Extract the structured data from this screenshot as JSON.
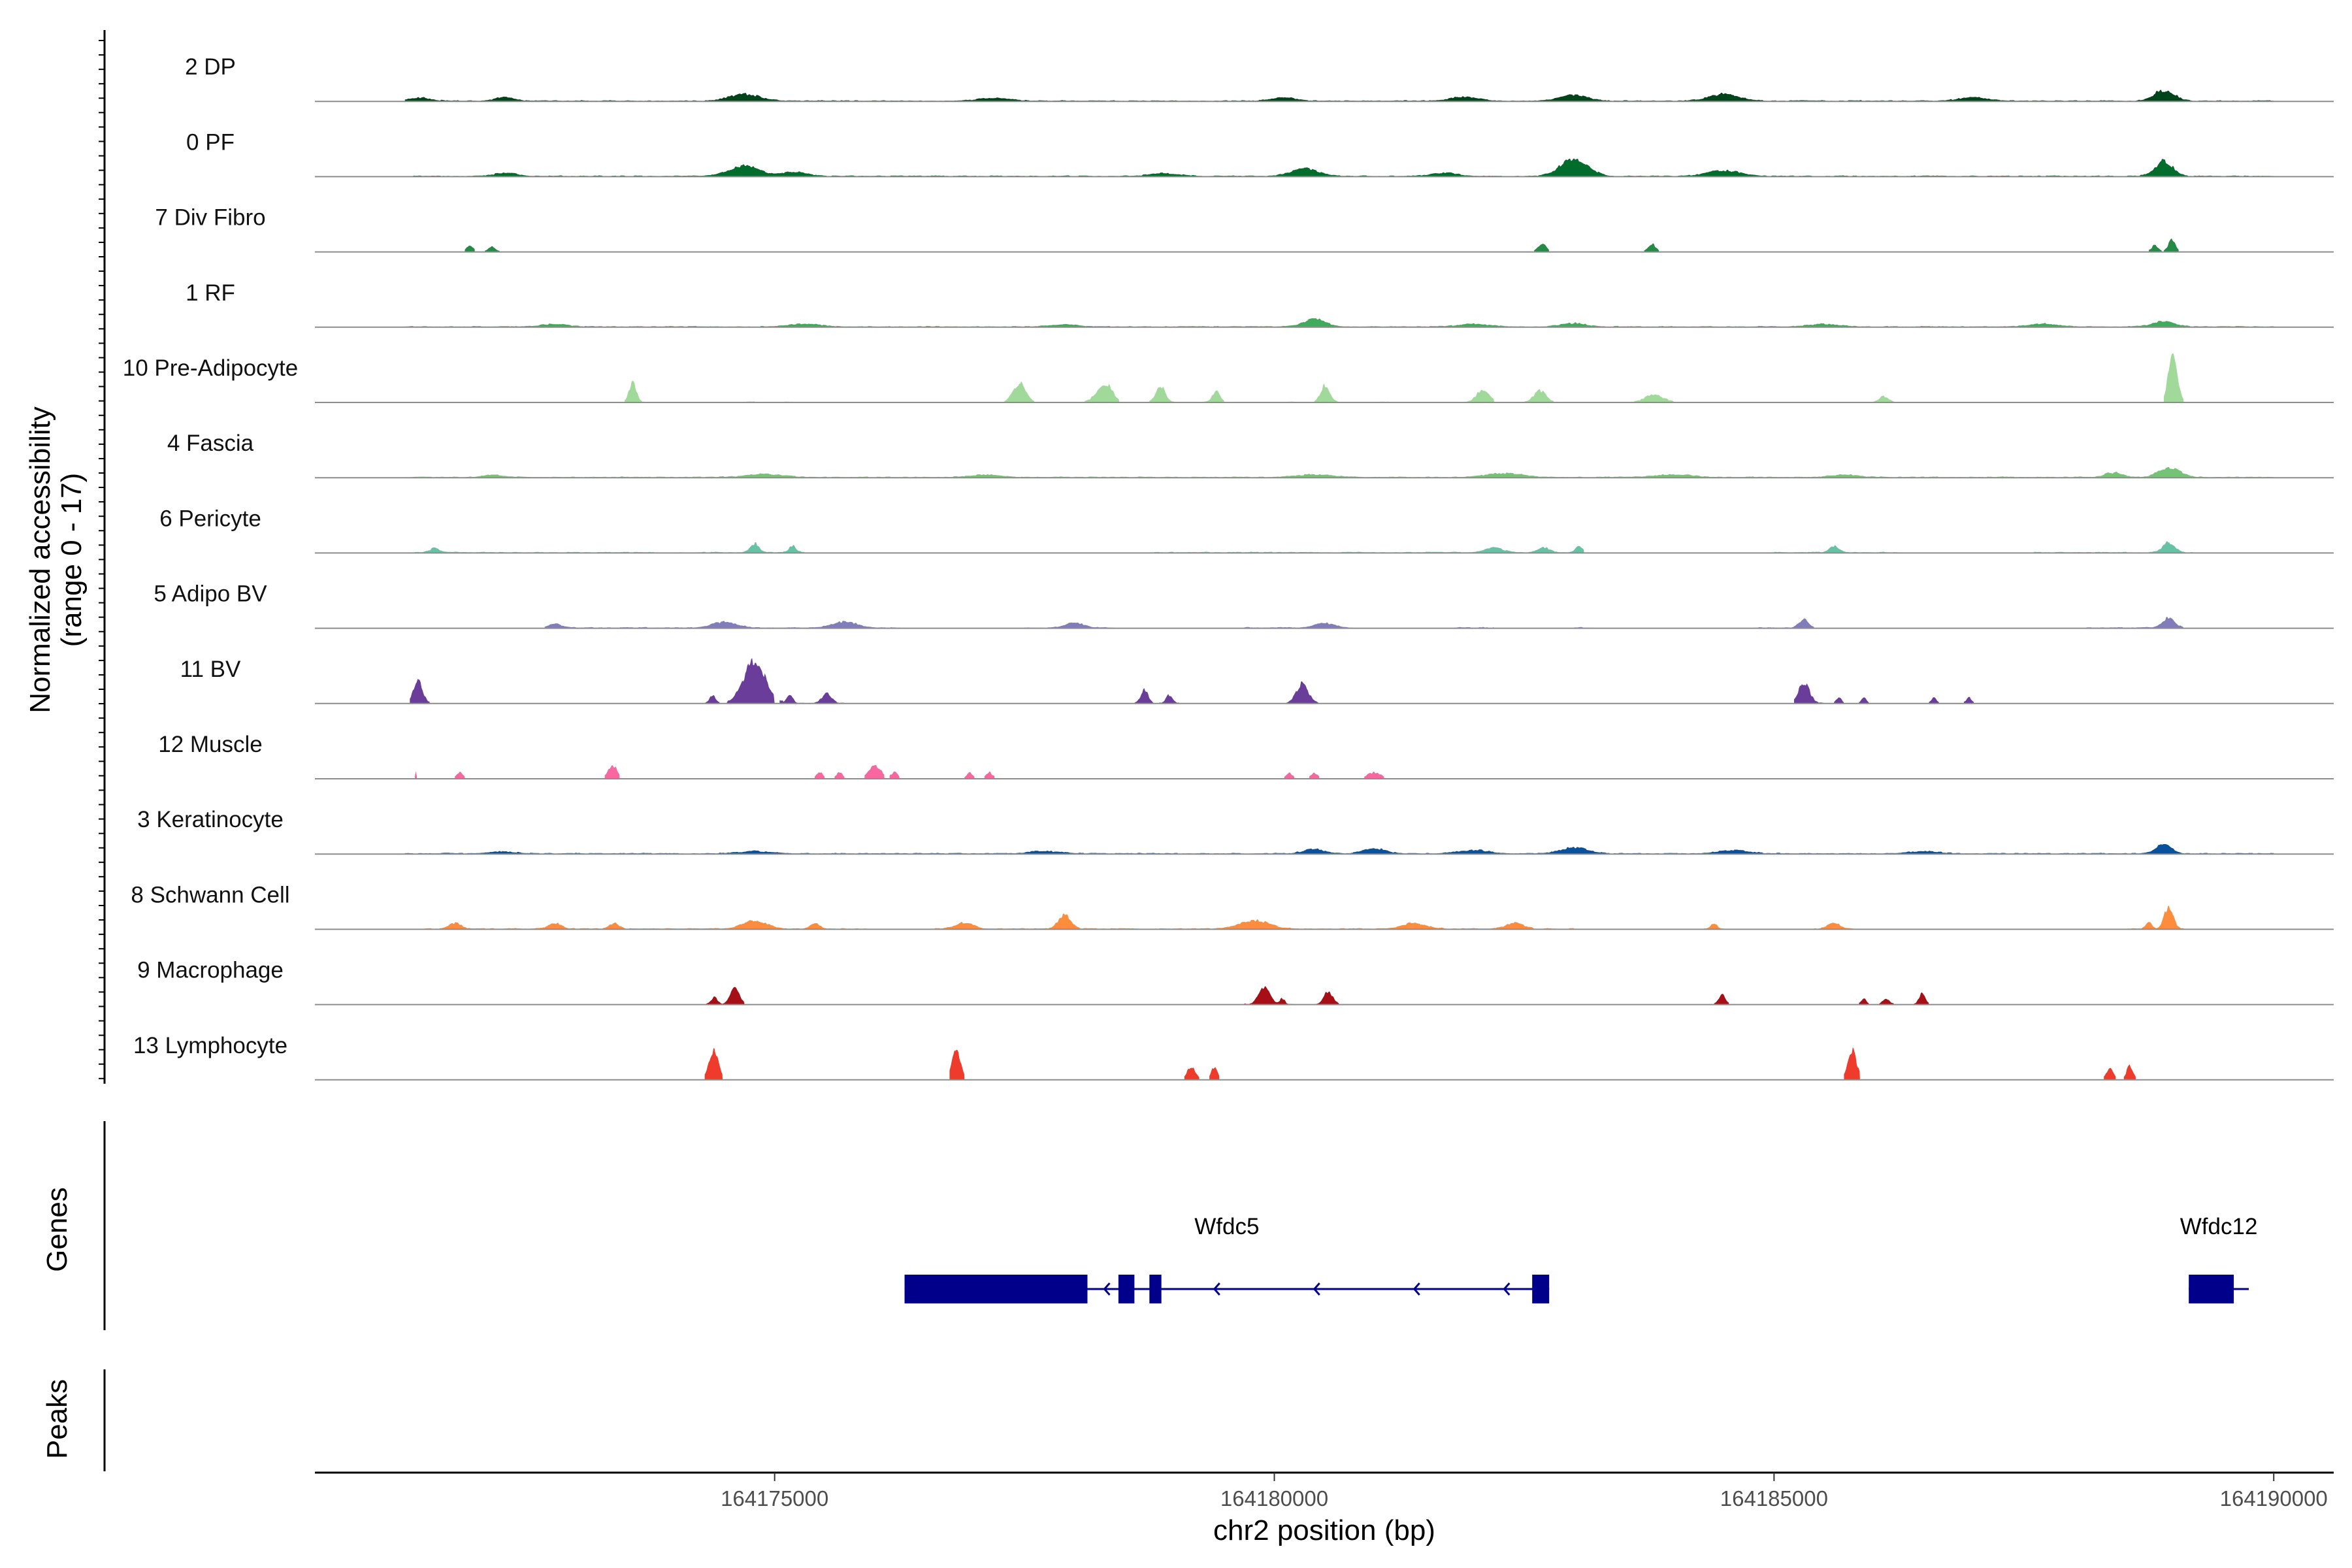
{
  "chart_data": {
    "type": "area",
    "title": "",
    "xlabel": "chr2 position (bp)",
    "ylabel": "Normalized accessibility",
    "ylabel_sub": "(range 0 - 17)",
    "xlim": [
      164170400,
      164190600
    ],
    "x_ticks": [
      164175000,
      164180000,
      164185000,
      164190000
    ],
    "x_tick_labels": [
      "164175000",
      "164180000",
      "164185000",
      "164190000"
    ],
    "ylim": [
      0,
      17
    ],
    "tracks": [
      {
        "name": "2 DP",
        "color": "#00441b",
        "regions": [
          [
            164171300,
            164190000
          ]
        ],
        "peaks": [
          [
            164171450,
            0.9,
            350
          ],
          [
            164172300,
            1.0,
            280
          ],
          [
            164174700,
            1.8,
            500
          ],
          [
            164177200,
            0.8,
            500
          ],
          [
            164180100,
            0.9,
            400
          ],
          [
            164181900,
            1.1,
            450
          ],
          [
            164183000,
            1.6,
            450
          ],
          [
            164184500,
            1.8,
            500
          ],
          [
            164187000,
            0.9,
            500
          ],
          [
            164188900,
            2.8,
            350
          ]
        ]
      },
      {
        "name": "0 PF",
        "color": "#006d2c",
        "regions": [
          [
            164171300,
            164190000
          ]
        ],
        "peaks": [
          [
            164172300,
            0.8,
            400
          ],
          [
            164174700,
            2.8,
            500
          ],
          [
            164175200,
            1.2,
            400
          ],
          [
            164178900,
            0.7,
            500
          ],
          [
            164180300,
            2.0,
            450
          ],
          [
            164181700,
            0.9,
            400
          ],
          [
            164183000,
            4.8,
            450
          ],
          [
            164184500,
            1.5,
            550
          ],
          [
            164188900,
            4.0,
            300
          ]
        ]
      },
      {
        "name": "7 Div Fibro",
        "color": "#238b45",
        "regions": [
          [
            164171900,
            164172000
          ],
          [
            164172100,
            164172250
          ],
          [
            164182600,
            164182750
          ],
          [
            164183700,
            164183850
          ],
          [
            164188750,
            164188880
          ],
          [
            164188900,
            164189050
          ]
        ],
        "peaks": [
          [
            164171950,
            1.8,
            100
          ],
          [
            164172170,
            1.3,
            100
          ],
          [
            164182680,
            2.2,
            120
          ],
          [
            164183780,
            2.0,
            120
          ],
          [
            164188810,
            1.6,
            100
          ],
          [
            164188980,
            3.0,
            120
          ]
        ]
      },
      {
        "name": "1 RF",
        "color": "#41ab5d",
        "regions": [
          [
            164171300,
            164190000
          ]
        ],
        "peaks": [
          [
            164172800,
            0.6,
            500
          ],
          [
            164175300,
            0.7,
            500
          ],
          [
            164177900,
            0.6,
            500
          ],
          [
            164180400,
            2.0,
            350
          ],
          [
            164182000,
            0.7,
            500
          ],
          [
            164183000,
            0.9,
            400
          ],
          [
            164185500,
            0.7,
            500
          ],
          [
            164187700,
            0.7,
            500
          ],
          [
            164188900,
            1.5,
            350
          ]
        ]
      },
      {
        "name": "10 Pre-Adipocyte",
        "color": "#a1d99b",
        "regions": [
          [
            164173500,
            164173700
          ],
          [
            164174700,
            164174800
          ],
          [
            164175100,
            164175200
          ],
          [
            164177300,
            164177600
          ],
          [
            164178100,
            164178450
          ],
          [
            164178750,
            164179000
          ],
          [
            164179300,
            164179500
          ],
          [
            164180100,
            164180200
          ],
          [
            164180400,
            164180650
          ],
          [
            164181050,
            164181150
          ],
          [
            164181900,
            164182200
          ],
          [
            164182500,
            164182800
          ],
          [
            164183600,
            164184000
          ],
          [
            164186000,
            164186200
          ],
          [
            164188900,
            164189100
          ]
        ],
        "peaks": [
          [
            164173580,
            5.0,
            120
          ],
          [
            164177450,
            5.0,
            200
          ],
          [
            164178300,
            5.0,
            250
          ],
          [
            164178860,
            4.2,
            150
          ],
          [
            164179420,
            3.0,
            120
          ],
          [
            164180510,
            4.5,
            150
          ],
          [
            164182090,
            3.5,
            200
          ],
          [
            164182660,
            3.0,
            200
          ],
          [
            164183800,
            1.8,
            300
          ],
          [
            164186100,
            1.5,
            150
          ],
          [
            164188990,
            13.0,
            150
          ]
        ]
      },
      {
        "name": "4 Fascia",
        "color": "#74c476",
        "regions": [
          [
            164171300,
            164190000
          ]
        ],
        "peaks": [
          [
            164172200,
            0.5,
            400
          ],
          [
            164174900,
            0.8,
            600
          ],
          [
            164177100,
            0.6,
            500
          ],
          [
            164180400,
            0.7,
            600
          ],
          [
            164182300,
            1.0,
            600
          ],
          [
            164184000,
            0.7,
            600
          ],
          [
            164185700,
            0.6,
            500
          ],
          [
            164188400,
            1.2,
            300
          ],
          [
            164188950,
            2.6,
            350
          ]
        ]
      },
      {
        "name": "6 Pericyte",
        "color": "#66c2a4",
        "regions": [
          [
            164171400,
            164173800
          ],
          [
            164174000,
            164175300
          ],
          [
            164178800,
            164183100
          ],
          [
            164185000,
            164186300
          ],
          [
            164187600,
            164189200
          ]
        ],
        "peaks": [
          [
            164171600,
            1.2,
            150
          ],
          [
            164174800,
            2.4,
            150
          ],
          [
            164175180,
            1.8,
            120
          ],
          [
            164182200,
            1.2,
            300
          ],
          [
            164182700,
            1.3,
            200
          ],
          [
            164183050,
            1.6,
            120
          ],
          [
            164185600,
            1.8,
            150
          ],
          [
            164188950,
            2.8,
            200
          ]
        ]
      },
      {
        "name": "5 Adipo BV",
        "color": "#807dba",
        "regions": [
          [
            164172700,
            164176300
          ],
          [
            164177500,
            164178400
          ],
          [
            164179700,
            164180800
          ],
          [
            164181800,
            164182200
          ],
          [
            164183000,
            164183200
          ],
          [
            164184800,
            164185400
          ],
          [
            164188100,
            164189100
          ]
        ],
        "peaks": [
          [
            164172800,
            1.1,
            200
          ],
          [
            164174500,
            1.5,
            400
          ],
          [
            164175700,
            1.6,
            400
          ],
          [
            164178000,
            1.4,
            300
          ],
          [
            164180500,
            1.3,
            300
          ],
          [
            164185300,
            2.4,
            150
          ],
          [
            164188950,
            2.6,
            200
          ]
        ]
      },
      {
        "name": "11 BV",
        "color": "#6a3d9a",
        "regions": [
          [
            164171350,
            164171550
          ],
          [
            164174300,
            164174450
          ],
          [
            164174500,
            164175000
          ],
          [
            164175050,
            164175300
          ],
          [
            164175350,
            164175700
          ],
          [
            164178600,
            164178800
          ],
          [
            164178850,
            164179050
          ],
          [
            164180100,
            164180450
          ],
          [
            164185200,
            164185500
          ],
          [
            164185600,
            164185700
          ],
          [
            164185850,
            164185950
          ],
          [
            164186550,
            164186650
          ],
          [
            164186900,
            164187000
          ]
        ],
        "peaks": [
          [
            164171430,
            6.0,
            150
          ],
          [
            164174380,
            2.0,
            100
          ],
          [
            164174800,
            12.0,
            350
          ],
          [
            164175150,
            2.2,
            100
          ],
          [
            164175520,
            2.5,
            150
          ],
          [
            164178700,
            3.5,
            120
          ],
          [
            164178950,
            2.2,
            100
          ],
          [
            164180280,
            5.0,
            200
          ],
          [
            164185300,
            5.5,
            180
          ],
          [
            164185650,
            1.5,
            80
          ],
          [
            164185900,
            1.4,
            80
          ],
          [
            164186600,
            1.5,
            80
          ],
          [
            164186950,
            1.4,
            80
          ]
        ]
      },
      {
        "name": "12 Muscle",
        "color": "#f768a1",
        "regions": [
          [
            164171400,
            164171420
          ],
          [
            164171800,
            164171900
          ],
          [
            164173300,
            164173450
          ],
          [
            164175400,
            164175500
          ],
          [
            164175600,
            164175700
          ],
          [
            164175900,
            164176100
          ],
          [
            164176150,
            164176250
          ],
          [
            164176900,
            164177000
          ],
          [
            164177100,
            164177200
          ],
          [
            164180100,
            164180200
          ],
          [
            164180350,
            164180450
          ],
          [
            164180900,
            164181100
          ]
        ],
        "peaks": [
          [
            164171410,
            2.0,
            20
          ],
          [
            164171850,
            1.6,
            100
          ],
          [
            164173380,
            3.5,
            150
          ],
          [
            164175450,
            1.6,
            100
          ],
          [
            164175650,
            1.6,
            100
          ],
          [
            164176000,
            3.5,
            200
          ],
          [
            164176200,
            1.6,
            100
          ],
          [
            164176950,
            1.5,
            100
          ],
          [
            164177150,
            1.5,
            100
          ],
          [
            164180150,
            1.5,
            100
          ],
          [
            164180400,
            1.5,
            100
          ],
          [
            164181000,
            1.6,
            200
          ]
        ]
      },
      {
        "name": "3 Keratinocyte",
        "color": "#08519c",
        "regions": [
          [
            164171300,
            164190000
          ]
        ],
        "peaks": [
          [
            164172300,
            0.5,
            400
          ],
          [
            164174800,
            0.6,
            500
          ],
          [
            164177700,
            0.6,
            500
          ],
          [
            164180400,
            1.2,
            350
          ],
          [
            164181000,
            1.4,
            350
          ],
          [
            164182000,
            0.9,
            500
          ],
          [
            164183000,
            1.6,
            450
          ],
          [
            164184600,
            0.9,
            500
          ],
          [
            164186500,
            0.6,
            500
          ],
          [
            164188900,
            2.5,
            250
          ]
        ]
      },
      {
        "name": "8 Schwann Cell",
        "color": "#fd8d3c",
        "regions": [
          [
            164171500,
            164176000
          ],
          [
            164176600,
            164182600
          ],
          [
            164182700,
            164183000
          ],
          [
            164184300,
            164184500
          ],
          [
            164185400,
            164185800
          ],
          [
            164188500,
            164189100
          ]
        ],
        "peaks": [
          [
            164171800,
            1.6,
            200
          ],
          [
            164172800,
            1.5,
            200
          ],
          [
            164173400,
            1.5,
            150
          ],
          [
            164174800,
            2.2,
            400
          ],
          [
            164175400,
            1.5,
            150
          ],
          [
            164176900,
            1.6,
            300
          ],
          [
            164177900,
            3.8,
            200
          ],
          [
            164179800,
            2.2,
            500
          ],
          [
            164181400,
            1.5,
            400
          ],
          [
            164182400,
            1.5,
            300
          ],
          [
            164184400,
            1.5,
            100
          ],
          [
            164185600,
            1.5,
            200
          ],
          [
            164188750,
            2.0,
            100
          ],
          [
            164188950,
            6.0,
            150
          ]
        ]
      },
      {
        "name": "9 Macrophage",
        "color": "#a50f15",
        "regions": [
          [
            164174300,
            164174700
          ],
          [
            164179700,
            164180200
          ],
          [
            164180400,
            164180650
          ],
          [
            164184400,
            164184550
          ],
          [
            164185850,
            164185950
          ],
          [
            164186050,
            164186200
          ],
          [
            164186400,
            164186550
          ]
        ],
        "peaks": [
          [
            164174400,
            1.8,
            100
          ],
          [
            164174600,
            4.5,
            150
          ],
          [
            164179900,
            4.5,
            180
          ],
          [
            164180080,
            1.5,
            80
          ],
          [
            164180540,
            3.2,
            150
          ],
          [
            164184480,
            2.5,
            100
          ],
          [
            164185900,
            1.4,
            80
          ],
          [
            164186120,
            1.5,
            100
          ],
          [
            164186480,
            2.8,
            100
          ]
        ]
      },
      {
        "name": "13 Lymphocyte",
        "color": "#ef3b2c",
        "regions": [
          [
            164174300,
            164174480
          ],
          [
            164176750,
            164176900
          ],
          [
            164179100,
            164179250
          ],
          [
            164179350,
            164179450
          ],
          [
            164185700,
            164185860
          ],
          [
            164188300,
            164188420
          ],
          [
            164188500,
            164188620
          ]
        ],
        "peaks": [
          [
            164174390,
            8.0,
            160
          ],
          [
            164176820,
            8.0,
            140
          ],
          [
            164179170,
            3.5,
            140
          ],
          [
            164179400,
            3.5,
            100
          ],
          [
            164185780,
            7.8,
            150
          ],
          [
            164188360,
            3.2,
            110
          ],
          [
            164188560,
            3.5,
            110
          ]
        ]
      }
    ],
    "genes": [
      {
        "name": "Wfdc5",
        "strand": "-",
        "start": 164176300,
        "end": 164182750,
        "exons": [
          [
            164176300,
            164178130
          ],
          [
            164178440,
            164178600
          ],
          [
            164178750,
            164178870
          ],
          [
            164182580,
            164182750
          ]
        ],
        "arrows": [
          164178300,
          164179400,
          164180400,
          164181400,
          164182300
        ]
      },
      {
        "name": "Wfdc12",
        "strand": "-",
        "start": 164189150,
        "end": 164189750,
        "exons": [
          [
            164189150,
            164189600
          ]
        ],
        "arrows": []
      }
    ],
    "panel_labels": {
      "genes": "Genes",
      "peaks": "Peaks"
    },
    "peaks_track": []
  }
}
